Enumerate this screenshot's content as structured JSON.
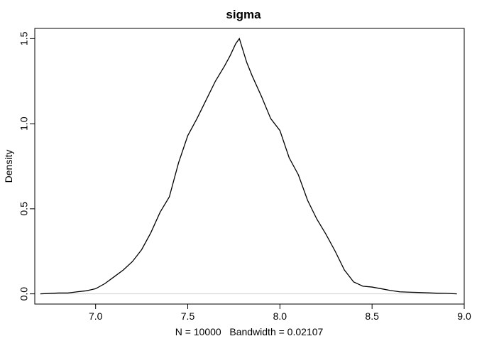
{
  "chart_data": {
    "type": "line",
    "title": "sigma",
    "xlabel": "N = 10000   Bandwidth = 0.02107",
    "ylabel": "Density",
    "xlim": [
      6.67,
      9.0
    ],
    "ylim": [
      -0.06,
      1.56
    ],
    "xticks": [
      7.0,
      7.5,
      8.0,
      8.5,
      9.0
    ],
    "xtick_labels": [
      "7.0",
      "7.5",
      "8.0",
      "8.5",
      "9.0"
    ],
    "yticks": [
      0.0,
      0.5,
      1.0,
      1.5
    ],
    "ytick_labels": [
      "0.0",
      "0.5",
      "1.0",
      "1.5"
    ],
    "zero_line": true,
    "grid": false,
    "line_color": "#000000",
    "zero_line_color": "#d3d3d3",
    "series": [
      {
        "x": [
          6.7,
          6.8,
          6.85,
          6.9,
          6.95,
          7.0,
          7.05,
          7.1,
          7.15,
          7.2,
          7.25,
          7.3,
          7.35,
          7.4,
          7.45,
          7.5,
          7.55,
          7.6,
          7.65,
          7.7,
          7.73,
          7.76,
          7.78,
          7.8,
          7.82,
          7.85,
          7.9,
          7.95,
          8.0,
          8.05,
          8.1,
          8.15,
          8.2,
          8.25,
          8.3,
          8.35,
          8.4,
          8.45,
          8.5,
          8.55,
          8.6,
          8.65,
          8.7,
          8.75,
          8.8,
          8.85,
          8.9,
          8.96
        ],
        "y": [
          0.0,
          0.005,
          0.005,
          0.012,
          0.018,
          0.03,
          0.06,
          0.1,
          0.14,
          0.19,
          0.26,
          0.36,
          0.48,
          0.57,
          0.77,
          0.93,
          1.03,
          1.14,
          1.25,
          1.34,
          1.4,
          1.47,
          1.5,
          1.43,
          1.36,
          1.28,
          1.16,
          1.03,
          0.96,
          0.8,
          0.7,
          0.55,
          0.44,
          0.35,
          0.25,
          0.14,
          0.07,
          0.045,
          0.04,
          0.03,
          0.02,
          0.012,
          0.01,
          0.008,
          0.006,
          0.004,
          0.003,
          0.0
        ]
      }
    ]
  }
}
